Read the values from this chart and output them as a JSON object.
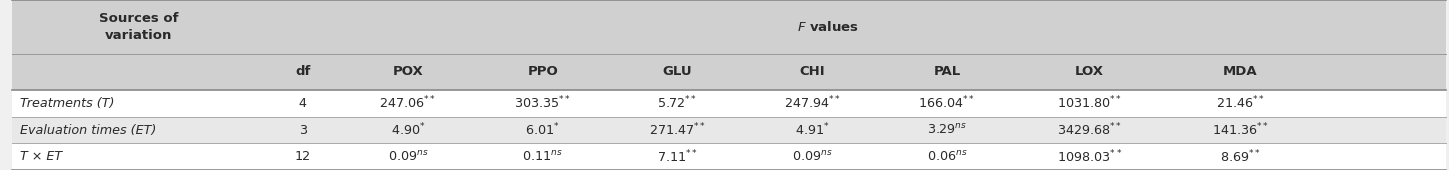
{
  "title_left": "Sources of\nvariation",
  "header_fvalues": "F values",
  "col_headers": [
    "df",
    "POX",
    "PPO",
    "GLU",
    "CHI",
    "PAL",
    "LOX",
    "MDA"
  ],
  "rows": [
    {
      "label": "Treatments (T)",
      "values": [
        "4",
        "247.06**",
        "303.35**",
        "5.72**",
        "247.94**",
        "166.04**",
        "1031.80**",
        "21.46**"
      ],
      "shade": false
    },
    {
      "label": "Evaluation times (ET)",
      "values": [
        "3",
        "4.90*",
        "6.01*",
        "271.47**",
        "4.91*",
        "3.29ns",
        "3429.68**",
        "141.36**"
      ],
      "shade": true
    },
    {
      "label": "T × ET",
      "values": [
        "12",
        "0.09ns",
        "0.11ns",
        "7.11**",
        "0.09ns",
        "0.06 ns",
        "1098.03**",
        "8.69**"
      ],
      "shade": false
    }
  ],
  "bg_header": "#d0d0d0",
  "bg_shade": "#e8e8e8",
  "bg_white": "#ffffff",
  "text_color": "#2a2a2a",
  "fig_width": 14.49,
  "fig_height": 1.7,
  "dpi": 100
}
